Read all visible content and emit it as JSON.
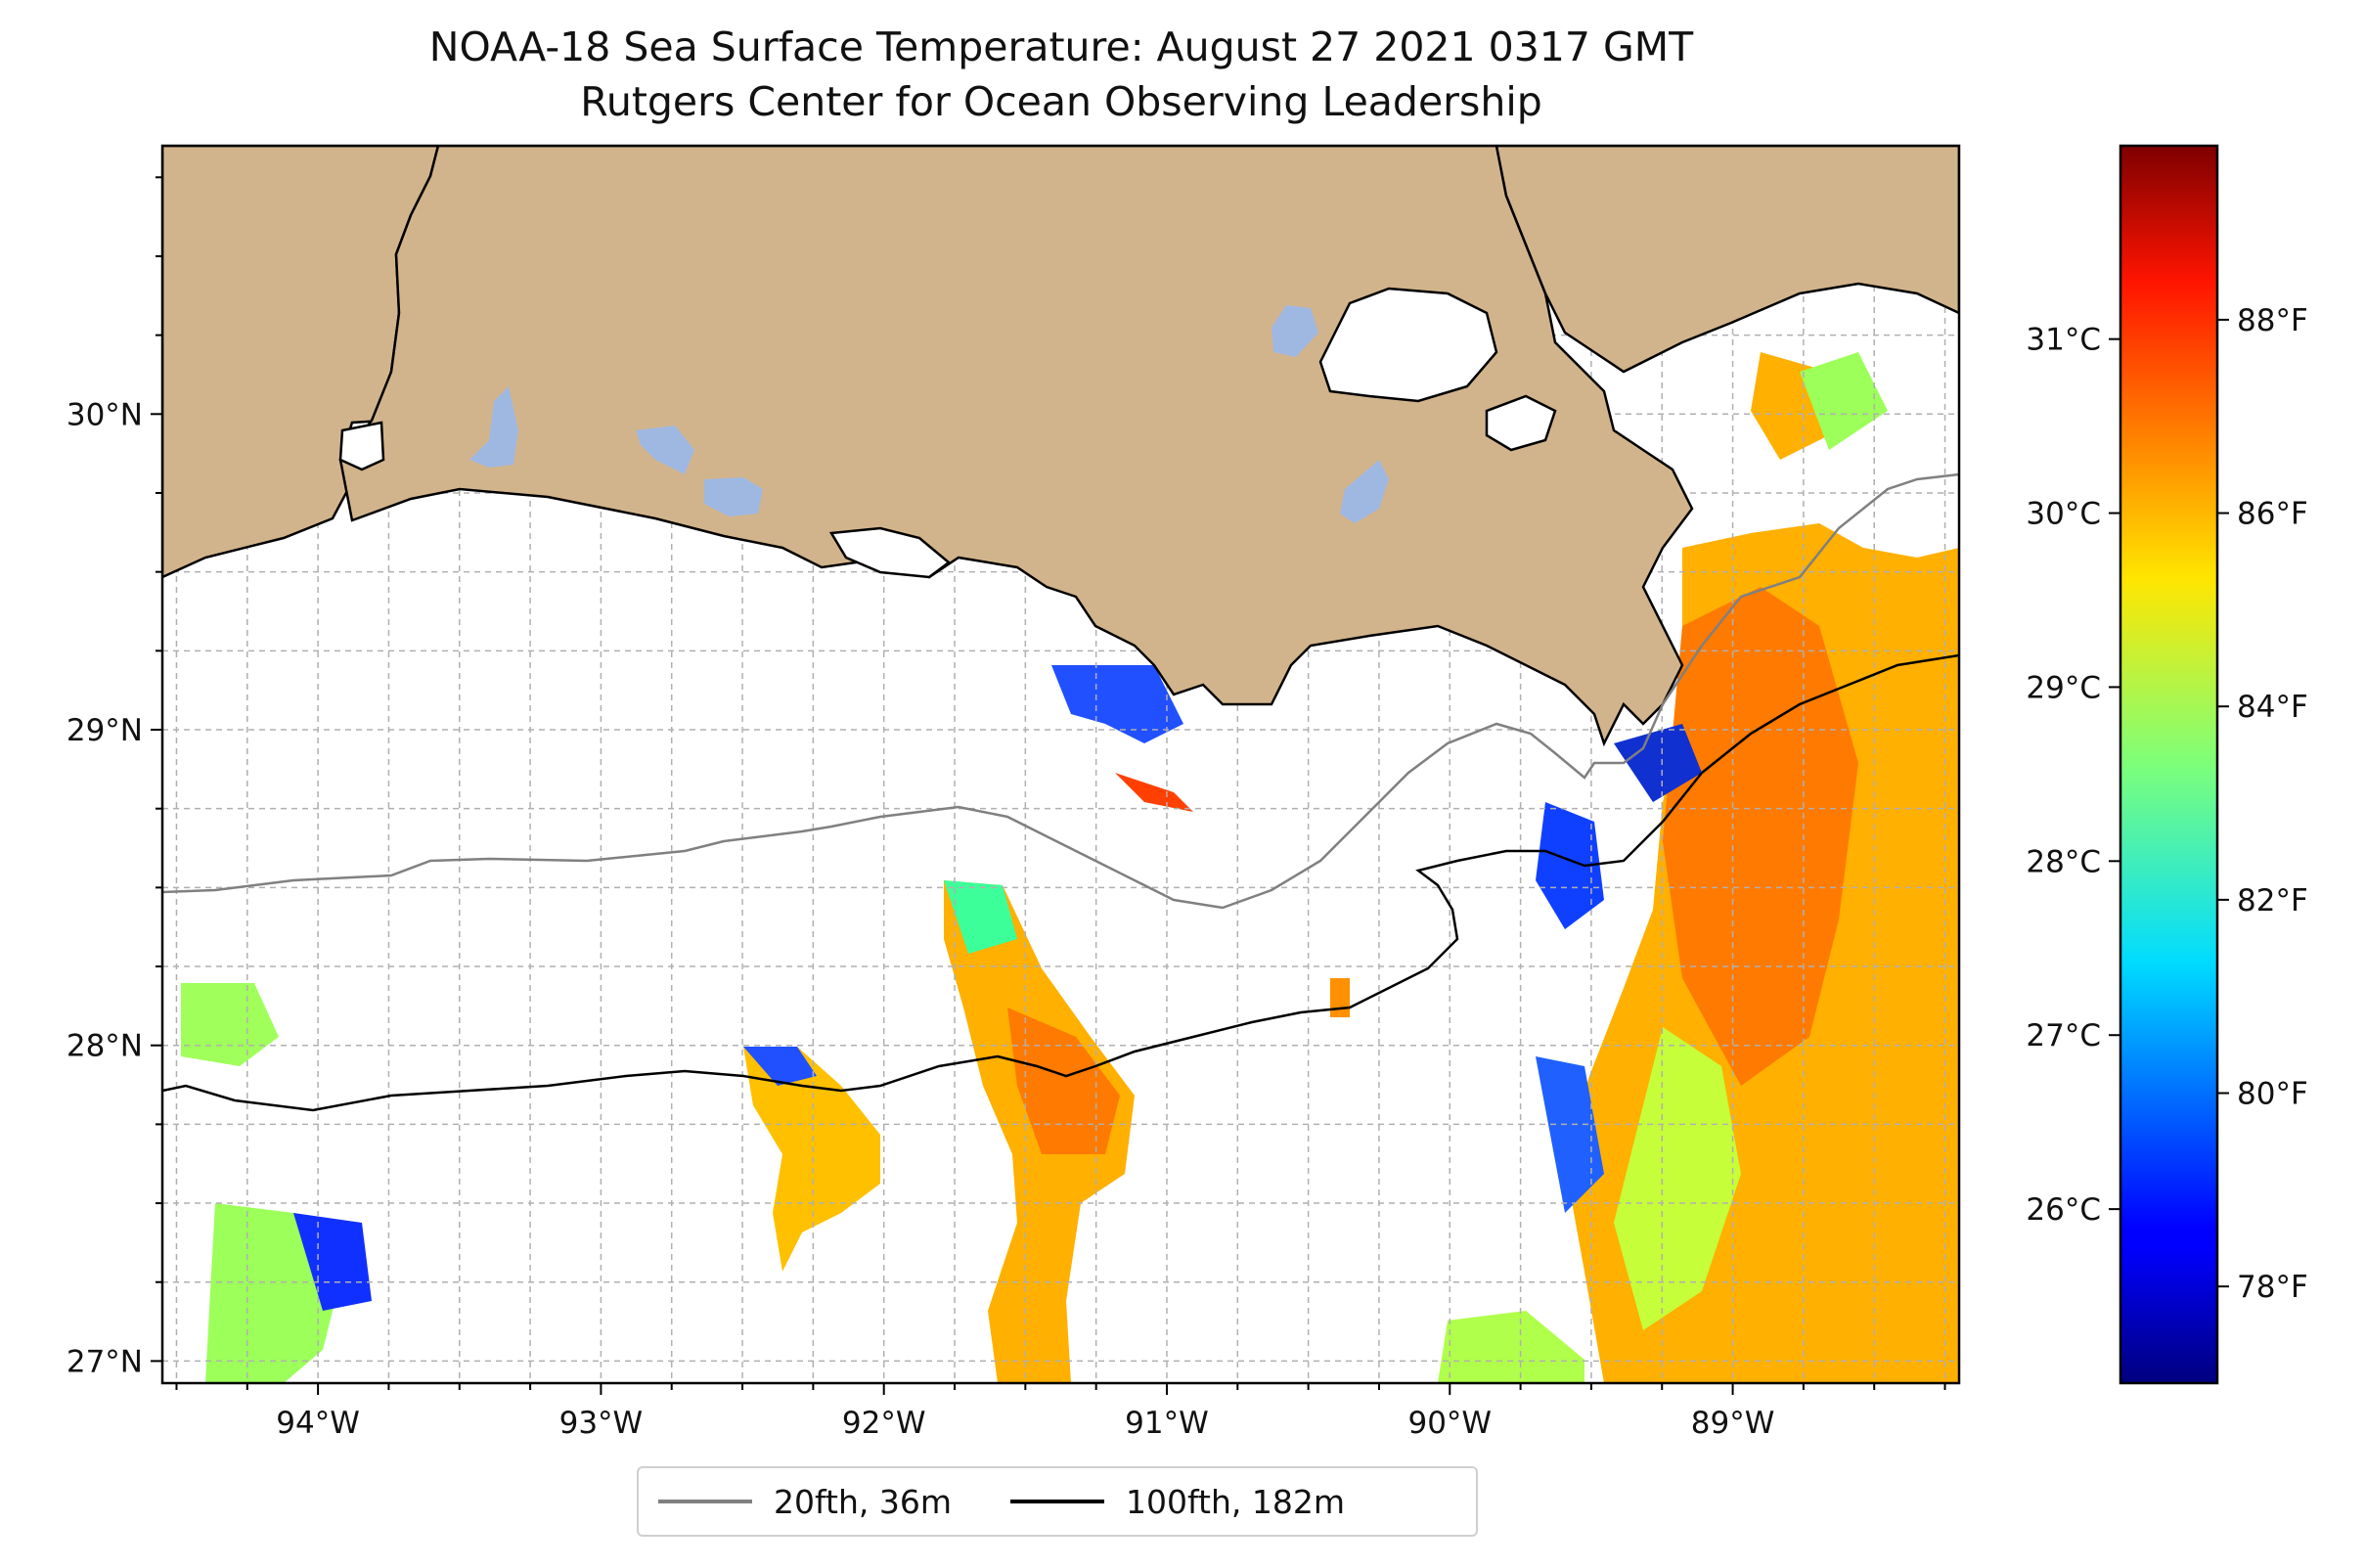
{
  "title": {
    "line1": "NOAA-18 Sea Surface Temperature: August 27 2021 0317 GMT",
    "line2": "Rutgers Center for Ocean Observing Leadership"
  },
  "map": {
    "lon_range": [
      -94.55,
      -88.2
    ],
    "lat_range": [
      26.93,
      30.85
    ],
    "lon_ticks": [
      {
        "value": -94,
        "label": "94°W"
      },
      {
        "value": -93,
        "label": "93°W"
      },
      {
        "value": -92,
        "label": "92°W"
      },
      {
        "value": -91,
        "label": "91°W"
      },
      {
        "value": -90,
        "label": "90°W"
      },
      {
        "value": -89,
        "label": "89°W"
      }
    ],
    "lat_ticks": [
      {
        "value": 27,
        "label": "27°N"
      },
      {
        "value": 28,
        "label": "28°N"
      },
      {
        "value": 29,
        "label": "29°N"
      },
      {
        "value": 30,
        "label": "30°N"
      }
    ],
    "grid": true,
    "colors": {
      "land": "#d2b48c",
      "lake": "#9fb8e2",
      "isobath_20": "#808080",
      "isobath_100": "#000000"
    }
  },
  "colorbar": {
    "colormap": "jet",
    "range_f": [
      77.0,
      89.8
    ],
    "celsius_ticks": [
      {
        "value": 26,
        "label": "26°C"
      },
      {
        "value": 27,
        "label": "27°C"
      },
      {
        "value": 28,
        "label": "28°C"
      },
      {
        "value": 29,
        "label": "29°C"
      },
      {
        "value": 30,
        "label": "30°C"
      },
      {
        "value": 31,
        "label": "31°C"
      }
    ],
    "fahrenheit_ticks": [
      {
        "value": 78,
        "label": "78°F"
      },
      {
        "value": 80,
        "label": "80°F"
      },
      {
        "value": 82,
        "label": "82°F"
      },
      {
        "value": 84,
        "label": "84°F"
      },
      {
        "value": 86,
        "label": "86°F"
      },
      {
        "value": 88,
        "label": "88°F"
      }
    ]
  },
  "legend": {
    "placement": "bottom-center",
    "items": [
      {
        "label": "20fth, 36m",
        "color": "#808080"
      },
      {
        "label": "100fth, 182m",
        "color": "#000000"
      }
    ]
  }
}
